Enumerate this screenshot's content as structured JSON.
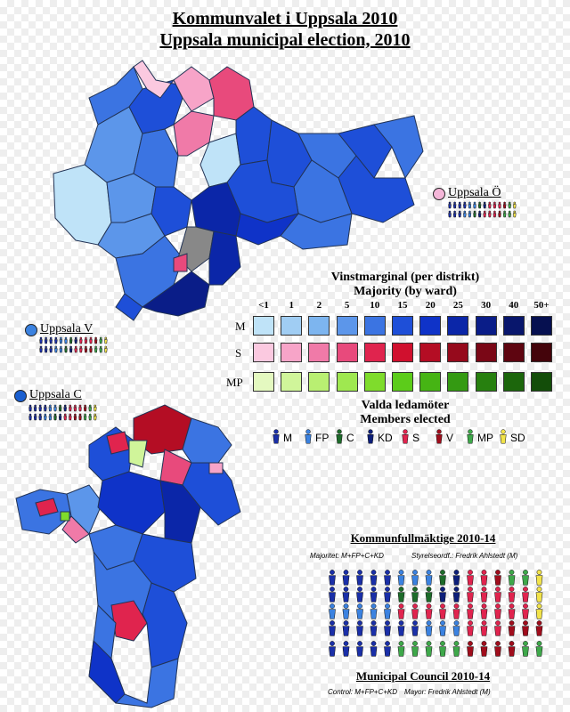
{
  "title_sv": "Kommunvalet i Uppsala 2010",
  "title_en": "Uppsala municipal election, 2010",
  "regions": {
    "east": "Uppsala Ö",
    "west": "Uppsala V",
    "central": "Uppsala C"
  },
  "legend": {
    "title_sv": "Vinstmarginal (per distrikt)",
    "title_en": "Majority (by ward)",
    "thresholds": [
      "<1",
      "1",
      "2",
      "5",
      "10",
      "15",
      "20",
      "25",
      "30",
      "40",
      "50+"
    ],
    "rows": [
      {
        "label": "M",
        "colors": [
          "#bfe3f8",
          "#a0cdf3",
          "#7db5ef",
          "#5c96ea",
          "#3b74e2",
          "#1e4fd8",
          "#0f33c8",
          "#0b26a8",
          "#0a1d88",
          "#08166c",
          "#061050"
        ]
      },
      {
        "label": "S",
        "colors": [
          "#fbc9e0",
          "#f7a4c8",
          "#f07aa8",
          "#e84a7c",
          "#e0244e",
          "#d0102e",
          "#b40d24",
          "#960a1c",
          "#7a0716",
          "#5e0510",
          "#44040b"
        ]
      },
      {
        "label": "MP",
        "colors": [
          "#e4f9c0",
          "#d0f59a",
          "#b9ef72",
          "#9fe850",
          "#7fdc2c",
          "#5ccc1a",
          "#46b414",
          "#349a12",
          "#27800f",
          "#1c660c",
          "#134d09"
        ]
      }
    ]
  },
  "members": {
    "title_sv": "Valda ledamöter",
    "title_en": "Members elected",
    "parties": [
      {
        "label": "M",
        "color": "#1a2fa8"
      },
      {
        "label": "FP",
        "color": "#3b82e0"
      },
      {
        "label": "C",
        "color": "#1d6b2a"
      },
      {
        "label": "KD",
        "color": "#0d1f7a"
      },
      {
        "label": "S",
        "color": "#e0244e"
      },
      {
        "label": "V",
        "color": "#a00d1c"
      },
      {
        "label": "MP",
        "color": "#3ea84a"
      },
      {
        "label": "SD",
        "color": "#f2e34a"
      }
    ]
  },
  "council": {
    "title_sv": "Kommunfullmäktige 2010-14",
    "title_en": "Municipal Council 2010-14",
    "majority_sv": "Majoritet: M+FP+C+KD",
    "chair_sv": "Styrelseordf.: Fredrik Ahlstedt (M)",
    "control_en": "Control: M+FP+C+KD",
    "mayor_en": "Mayor: Fredrik Ahlstedt (M)"
  },
  "colors": {
    "east_dot": "#f4b6d8",
    "west_dot": "#3b82e0",
    "central_dot": "#1a5fd0",
    "ward_outline": "#223355"
  }
}
